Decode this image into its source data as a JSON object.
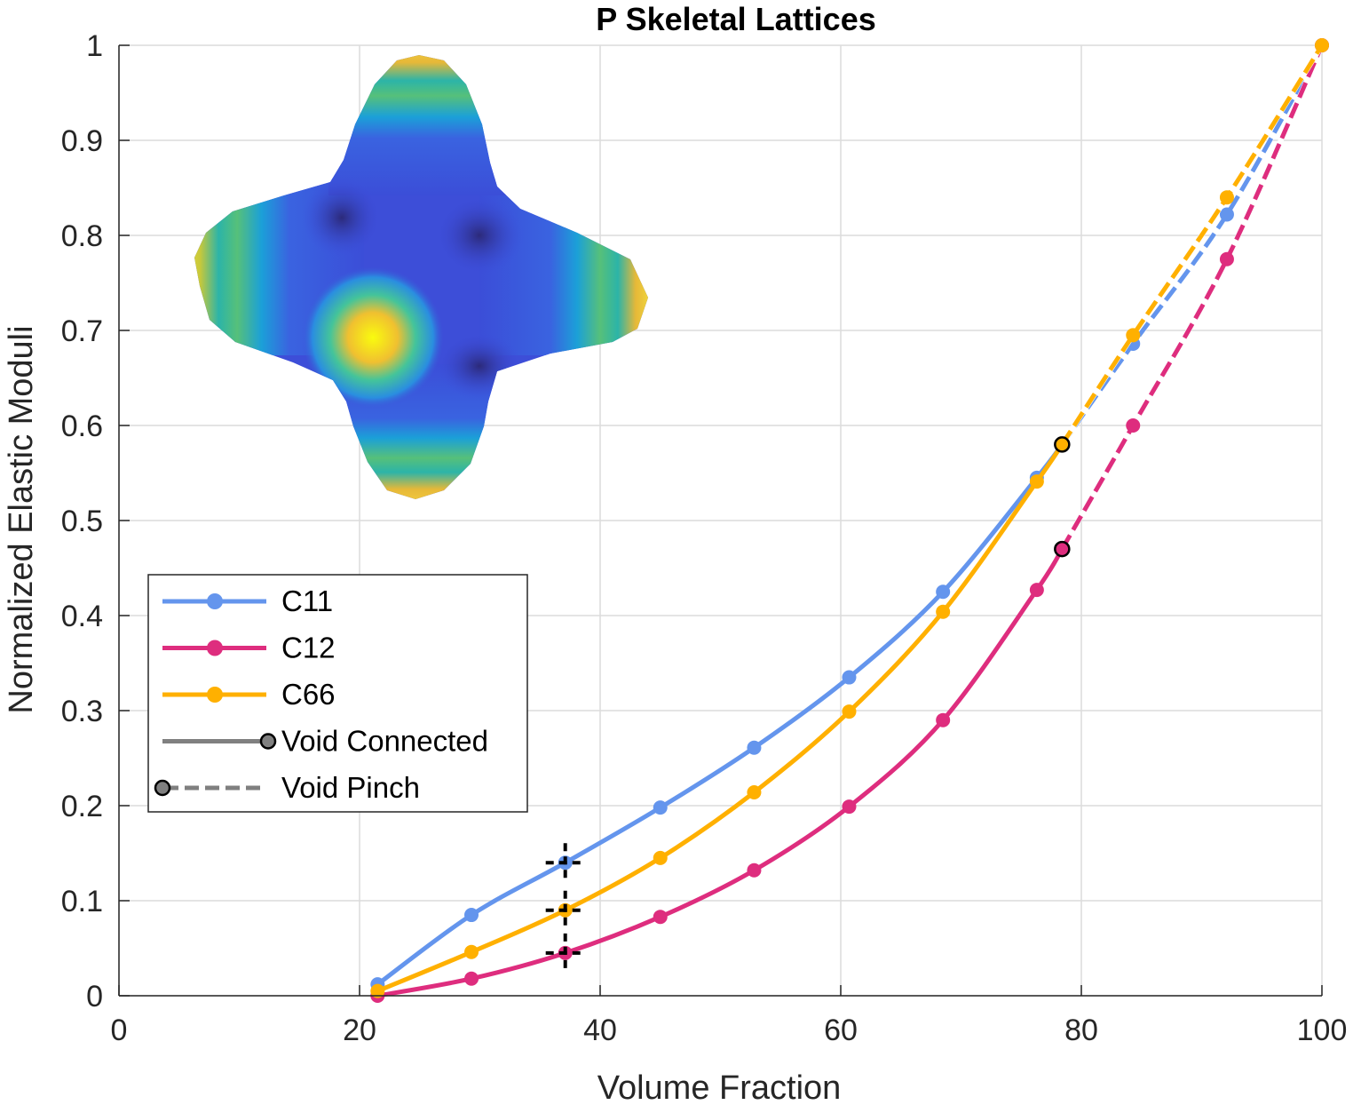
{
  "chart_data": {
    "type": "line",
    "title": "P Skeletal Lattices",
    "xlabel": "Volume Fraction",
    "ylabel": "Normalized Elastic Moduli",
    "xlim": [
      0,
      100
    ],
    "ylim": [
      0,
      1
    ],
    "xticks": [
      "0",
      "20",
      "40",
      "60",
      "80",
      "100"
    ],
    "yticks": [
      "0",
      "0.1",
      "0.2",
      "0.3",
      "0.4",
      "0.5",
      "0.6",
      "0.7",
      "0.8",
      "0.9",
      "1"
    ],
    "grid": true,
    "legend_position": "lower-left inside plot",
    "series": [
      {
        "name": "C11",
        "color": "#6495ED",
        "connected": {
          "x": [
            21.5,
            29.3,
            37.1,
            45.0,
            52.8,
            60.7,
            68.5,
            76.3,
            78.4
          ],
          "y": [
            0.012,
            0.085,
            0.14,
            0.198,
            0.261,
            0.335,
            0.425,
            0.545,
            0.58
          ]
        },
        "pinch": {
          "x": [
            78.4,
            84.3,
            92.1,
            100.0
          ],
          "y": [
            0.58,
            0.686,
            0.822,
            1.0
          ]
        }
      },
      {
        "name": "C12",
        "color": "#DE2D7E",
        "connected": {
          "x": [
            21.5,
            29.3,
            37.1,
            45.0,
            52.8,
            60.7,
            68.5,
            76.3,
            78.4
          ],
          "y": [
            0.0,
            0.018,
            0.045,
            0.083,
            0.132,
            0.199,
            0.29,
            0.427,
            0.47
          ]
        },
        "pinch": {
          "x": [
            78.4,
            84.3,
            92.1,
            100.0
          ],
          "y": [
            0.47,
            0.6,
            0.775,
            1.0
          ]
        }
      },
      {
        "name": "C66",
        "color": "#FFB000",
        "connected": {
          "x": [
            21.5,
            29.3,
            37.1,
            45.0,
            52.8,
            60.7,
            68.5,
            76.3,
            78.4
          ],
          "y": [
            0.005,
            0.046,
            0.09,
            0.145,
            0.214,
            0.299,
            0.404,
            0.541,
            0.58
          ]
        },
        "pinch": {
          "x": [
            78.4,
            84.3,
            92.1,
            100.0
          ],
          "y": [
            0.58,
            0.695,
            0.84,
            1.0
          ]
        }
      }
    ],
    "transition_markers": [
      {
        "x": 78.4,
        "y": 0.58,
        "color": "#FFB000"
      },
      {
        "x": 78.4,
        "y": 0.47,
        "color": "#DE2D7E"
      }
    ],
    "cross_markers": [
      {
        "x": 37.1,
        "y": 0.14
      },
      {
        "x": 37.1,
        "y": 0.09
      },
      {
        "x": 37.1,
        "y": 0.045
      }
    ],
    "legend": [
      {
        "label": "C11",
        "color": "#6495ED",
        "style": "solid-dot"
      },
      {
        "label": "C12",
        "color": "#DE2D7E",
        "style": "solid-dot"
      },
      {
        "label": "C66",
        "color": "#FFB000",
        "style": "solid-dot"
      },
      {
        "label": "Void Connected",
        "color": "#808080",
        "style": "solid-end-marker"
      },
      {
        "label": "Void Pinch",
        "color": "#808080",
        "style": "dashed-start-marker"
      }
    ],
    "inset_image": "p-surface-heatmap-shape"
  }
}
